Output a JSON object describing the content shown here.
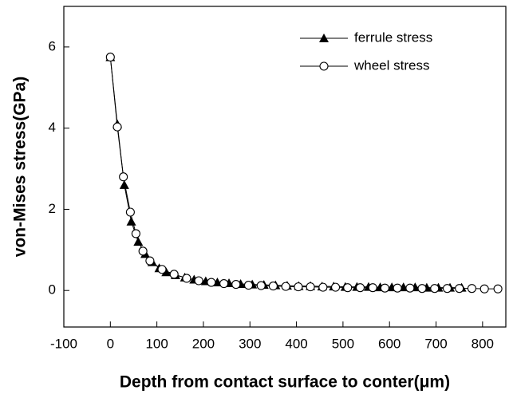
{
  "chart_data": {
    "type": "line",
    "xlabel": "Depth from contact surface to conter(μm)",
    "ylabel": "von-Mises stress(GPa)",
    "xlim": [
      -100,
      850
    ],
    "ylim": [
      -0.9,
      7
    ],
    "xticks": [
      -100,
      0,
      100,
      200,
      300,
      400,
      500,
      600,
      700,
      800
    ],
    "yticks": [
      0,
      2,
      4,
      6
    ],
    "legend": "upper right",
    "series": [
      {
        "name": "ferrule stress",
        "color": "#000000",
        "marker": "triangle",
        "x": [
          0,
          15,
          30,
          45,
          60,
          75,
          90,
          105,
          120,
          140,
          160,
          180,
          205,
          230,
          255,
          280,
          305,
          330,
          355,
          380,
          405,
          430,
          455,
          480,
          505,
          530,
          555,
          580,
          605,
          630,
          655,
          680,
          705,
          730,
          755
        ],
        "values": [
          5.75,
          4.1,
          2.6,
          1.7,
          1.2,
          0.9,
          0.7,
          0.55,
          0.45,
          0.38,
          0.32,
          0.27,
          0.23,
          0.2,
          0.18,
          0.16,
          0.15,
          0.14,
          0.13,
          0.12,
          0.11,
          0.11,
          0.1,
          0.1,
          0.09,
          0.09,
          0.09,
          0.08,
          0.08,
          0.08,
          0.08,
          0.07,
          0.07,
          0.07,
          0.07
        ]
      },
      {
        "name": "wheel stress",
        "color": "#000000",
        "marker": "circle",
        "x": [
          0,
          15,
          28,
          43,
          55,
          70,
          85,
          111,
          137,
          164,
          190,
          217,
          244,
          270,
          297,
          324,
          350,
          377,
          404,
          430,
          457,
          484,
          510,
          537,
          564,
          590,
          617,
          644,
          670,
          697,
          724,
          750,
          777,
          804,
          833
        ],
        "values": [
          5.75,
          4.03,
          2.8,
          1.93,
          1.4,
          0.97,
          0.73,
          0.52,
          0.4,
          0.3,
          0.24,
          0.2,
          0.17,
          0.15,
          0.13,
          0.12,
          0.11,
          0.1,
          0.09,
          0.09,
          0.08,
          0.08,
          0.07,
          0.07,
          0.07,
          0.06,
          0.06,
          0.06,
          0.05,
          0.05,
          0.05,
          0.05,
          0.05,
          0.04,
          0.04
        ]
      }
    ]
  }
}
